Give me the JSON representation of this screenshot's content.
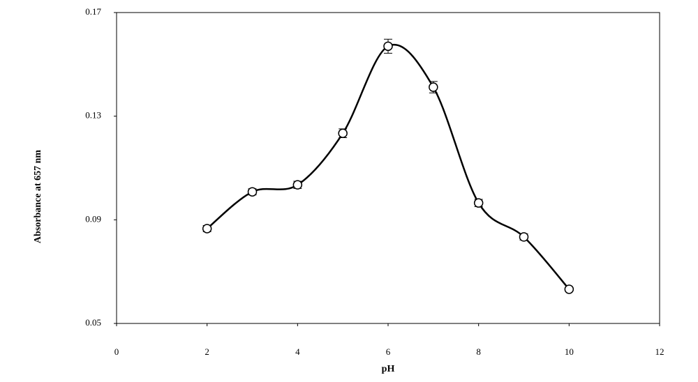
{
  "chart_data": {
    "type": "line",
    "x_label": "pH",
    "y_label": "Absorbance at 657 nm",
    "x": [
      2,
      3,
      4,
      5,
      6,
      7,
      8,
      9,
      10
    ],
    "series": [
      {
        "color": "#000000",
        "values": [
          0.0866,
          0.1008,
          0.1035,
          0.1234,
          0.157,
          0.1412,
          0.0965,
          0.0834,
          0.0632
        ],
        "errors": [
          0.0012,
          0.0012,
          0.0014,
          0.0017,
          0.0027,
          0.0022,
          0.0014,
          0.0012,
          0.0006
        ]
      }
    ],
    "xlim": [
      0,
      12
    ],
    "xticks": [
      0,
      2,
      4,
      6,
      8,
      10,
      12
    ],
    "ylim": [
      0.05,
      0.17
    ],
    "yticks": [
      0.05,
      0.09,
      0.13,
      0.17
    ],
    "smooth": true,
    "markers": "open-circle"
  }
}
